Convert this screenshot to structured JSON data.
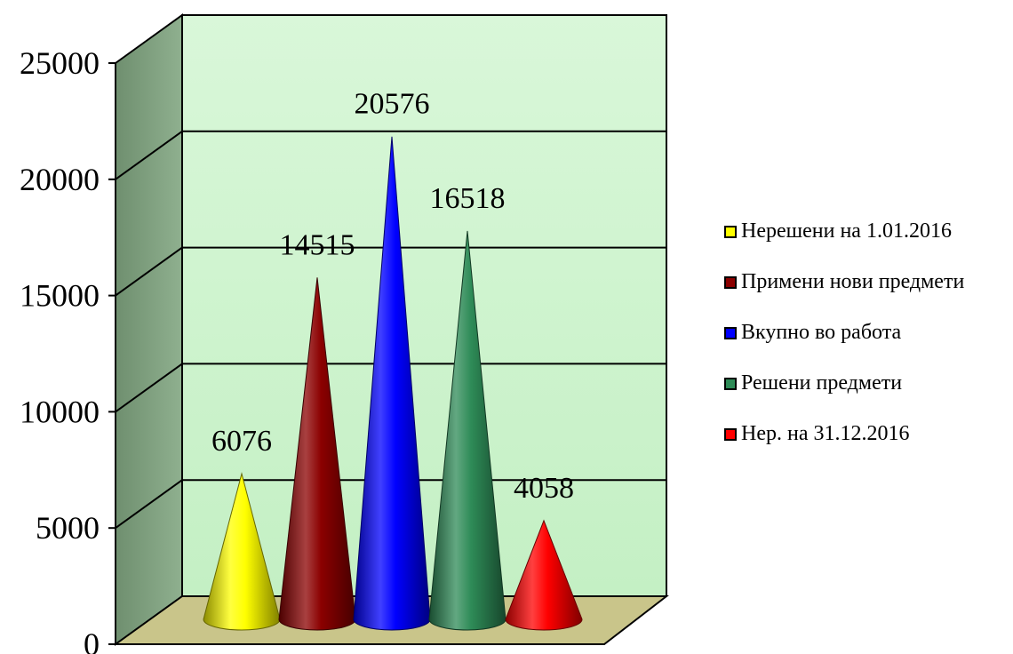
{
  "chart_data": {
    "type": "bar",
    "style": "3d-cone",
    "title": "",
    "xlabel": "",
    "ylabel": "",
    "ylim": [
      0,
      25000
    ],
    "yticks": [
      "0",
      "5000",
      "10000",
      "15000",
      "20000",
      "25000"
    ],
    "grid": true,
    "legend_position": "right",
    "series": [
      {
        "name": "Нерешени на 1.01.2016",
        "value": 6076,
        "label": "6076",
        "color": "#ffff00"
      },
      {
        "name": "Примени нови предмети",
        "value": 14515,
        "label": "14515",
        "color": "#8b0000"
      },
      {
        "name": "Вкупно во работа",
        "value": 20576,
        "label": "20576",
        "color": "#0000ff"
      },
      {
        "name": "Решени предмети",
        "value": 16518,
        "label": "16518",
        "color": "#2e8b57"
      },
      {
        "name": "Нер. на 31.12.2016",
        "value": 4058,
        "label": "4058",
        "color": "#ff0000"
      }
    ],
    "colors": {
      "back_wall": "#ccf5cc",
      "side_wall": "#7f9f7f",
      "floor": "#c9c58a"
    }
  }
}
